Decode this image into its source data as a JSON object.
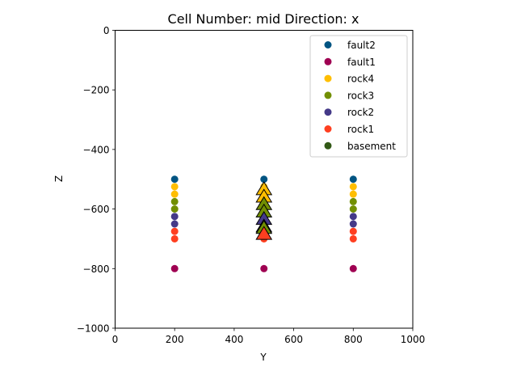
{
  "chart_data": {
    "type": "scatter",
    "title": "Cell Number: mid Direction: x",
    "xlabel": "Y",
    "ylabel": "Z",
    "xlim": [
      0,
      1000
    ],
    "ylim": [
      -1000,
      0
    ],
    "xticks": [
      0,
      200,
      400,
      600,
      800,
      1000
    ],
    "yticks": [
      0,
      -200,
      -400,
      -600,
      -800,
      -1000
    ],
    "xtick_labels": [
      "0",
      "200",
      "400",
      "600",
      "800",
      "1000"
    ],
    "ytick_labels": [
      "0",
      "−200",
      "−400",
      "−600",
      "−800",
      "−1000"
    ],
    "grid": false,
    "legend_position": "top-right",
    "series": [
      {
        "name": "fault2",
        "color": "#015482",
        "marker": "circle",
        "points": [
          [
            200,
            -500
          ],
          [
            500,
            -500
          ],
          [
            800,
            -500
          ]
        ]
      },
      {
        "name": "fault1",
        "color": "#9f0052",
        "marker": "circle",
        "points": [
          [
            200,
            -800
          ],
          [
            500,
            -800
          ],
          [
            800,
            -800
          ]
        ]
      },
      {
        "name": "rock4",
        "color": "#ffbe00",
        "marker": "circle",
        "points": [
          [
            200,
            -525
          ],
          [
            200,
            -550
          ],
          [
            500,
            -525
          ],
          [
            500,
            -550
          ],
          [
            800,
            -525
          ],
          [
            800,
            -550
          ]
        ]
      },
      {
        "name": "rock3",
        "color": "#728f02",
        "marker": "circle",
        "points": [
          [
            200,
            -575
          ],
          [
            200,
            -600
          ],
          [
            500,
            -575
          ],
          [
            500,
            -600
          ],
          [
            800,
            -575
          ],
          [
            800,
            -600
          ]
        ]
      },
      {
        "name": "rock2",
        "color": "#443988",
        "marker": "circle",
        "points": [
          [
            200,
            -625
          ],
          [
            200,
            -650
          ],
          [
            500,
            -625
          ],
          [
            500,
            -650
          ],
          [
            800,
            -625
          ],
          [
            800,
            -650
          ]
        ]
      },
      {
        "name": "rock1",
        "color": "#ff3f20",
        "marker": "circle",
        "points": [
          [
            200,
            -675
          ],
          [
            200,
            -700
          ],
          [
            500,
            -675
          ],
          [
            500,
            -700
          ],
          [
            800,
            -675
          ],
          [
            800,
            -700
          ]
        ]
      },
      {
        "name": "basement",
        "color": "#325916",
        "marker": "circle",
        "points": []
      }
    ],
    "orientations": [
      {
        "color": "#ffbe00",
        "points": [
          [
            500,
            -535
          ],
          [
            500,
            -560
          ]
        ]
      },
      {
        "color": "#728f02",
        "points": [
          [
            500,
            -585
          ],
          [
            500,
            -610
          ]
        ]
      },
      {
        "color": "#443988",
        "points": [
          [
            500,
            -635
          ],
          [
            500,
            -660
          ]
        ]
      },
      {
        "color": "#728f02",
        "points": [
          [
            500,
            -665
          ]
        ]
      },
      {
        "color": "#ff3f20",
        "points": [
          [
            500,
            -685
          ]
        ]
      }
    ]
  }
}
